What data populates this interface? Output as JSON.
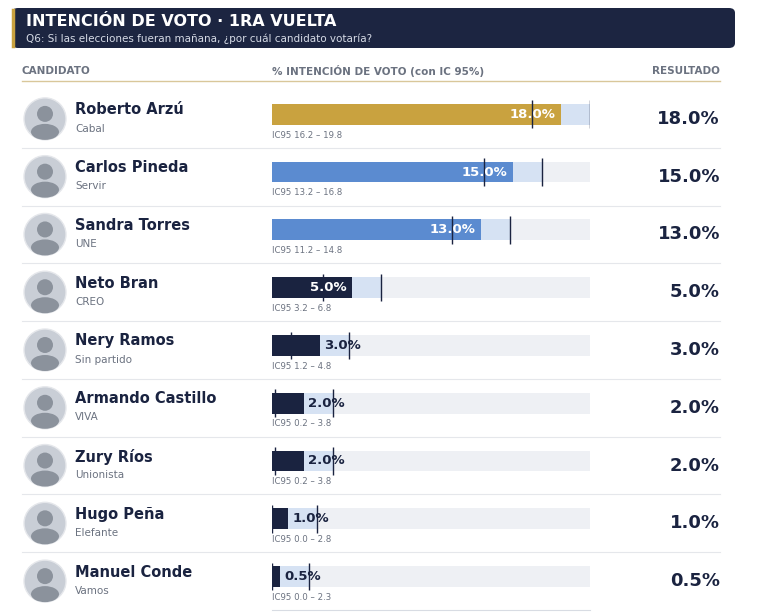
{
  "chart_data": {
    "type": "bar",
    "orientation": "horizontal",
    "title": "INTENCIÓN DE VOTO · 1RA VUELTA",
    "subtitle": "Q6: Si las elecciones fueran mañana, ¿por cuál candidato votaría?",
    "columns": [
      "CANDIDATO",
      "% INTENCIÓN DE VOTO (con IC 95%)",
      "RESULTADO"
    ],
    "categories": [
      "Roberto Arzú",
      "Carlos Pineda",
      "Sandra Torres",
      "Neto Bran",
      "Nery Ramos",
      "Armando Castillo",
      "Zury Ríos",
      "Hugo Peña",
      "Manuel Conde"
    ],
    "parties": [
      "Cabal",
      "Servir",
      "UNE",
      "CREO",
      "Sin partido",
      "VIVA",
      "Unionista",
      "Elefante",
      "Vamos"
    ],
    "values": [
      18.0,
      15.0,
      13.0,
      5.0,
      3.0,
      2.0,
      2.0,
      1.0,
      0.5
    ],
    "value_labels": [
      "18.0%",
      "15.0%",
      "13.0%",
      "5.0%",
      "3.0%",
      "2.0%",
      "2.0%",
      "1.0%",
      "0.5%"
    ],
    "ci_low": [
      16.2,
      13.2,
      11.2,
      3.2,
      1.2,
      0.2,
      0.2,
      0.0,
      0.0
    ],
    "ci_high": [
      19.8,
      16.8,
      14.8,
      6.8,
      4.8,
      3.8,
      3.8,
      2.8,
      2.3
    ],
    "ci_labels": [
      "IC95 16.2 – 19.8",
      "IC95 13.2 – 16.8",
      "IC95 11.2 – 14.8",
      "IC95 3.2 – 6.8",
      "IC95 1.2 – 4.8",
      "IC95 0.2 – 3.8",
      "IC95 0.2 – 3.8",
      "IC95 0.0 – 2.8",
      "IC95 0.0 – 2.3"
    ],
    "colors": [
      "#c9a23f",
      "#5b8bd0",
      "#5b8bd0",
      "#1a2340",
      "#1a2340",
      "#1a2340",
      "#1a2340",
      "#1a2340",
      "#1a2340"
    ],
    "xlim": [
      0,
      19.8
    ],
    "xticks": [],
    "tick_labels": false,
    "data_labels": true,
    "grid": false
  }
}
